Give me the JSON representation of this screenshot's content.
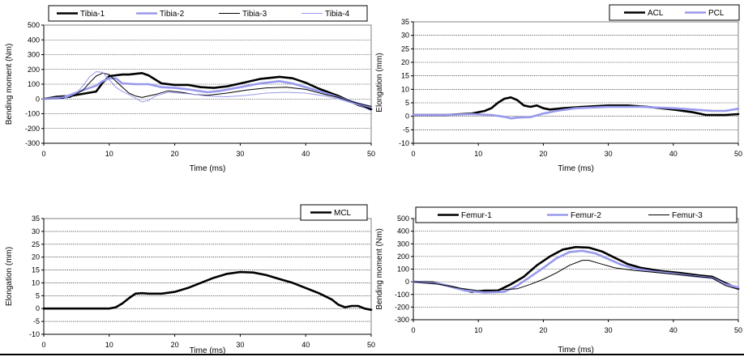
{
  "chart_data": [
    {
      "type": "line",
      "xlabel": "Time (ms)",
      "ylabel": "Bending moment (Nm)",
      "xlim": [
        0,
        50
      ],
      "ylim": [
        -300,
        500
      ],
      "xticks": [
        0,
        10,
        20,
        30,
        40,
        50
      ],
      "yticks": [
        -300,
        -200,
        -100,
        0,
        100,
        200,
        300,
        400,
        500
      ],
      "grid": "horizontal-dotted",
      "legend": "top",
      "series": [
        {
          "name": "Tibia-1",
          "color": "#000000",
          "width": 2.6,
          "points": [
            [
              0,
              0
            ],
            [
              2,
              15
            ],
            [
              4,
              20
            ],
            [
              6,
              35
            ],
            [
              8,
              50
            ],
            [
              9,
              110
            ],
            [
              10,
              155
            ],
            [
              12,
              165
            ],
            [
              13,
              165
            ],
            [
              15,
              175
            ],
            [
              16,
              160
            ],
            [
              18,
              105
            ],
            [
              20,
              95
            ],
            [
              22,
              95
            ],
            [
              24,
              80
            ],
            [
              26,
              75
            ],
            [
              28,
              85
            ],
            [
              30,
              105
            ],
            [
              33,
              135
            ],
            [
              36,
              150
            ],
            [
              38,
              140
            ],
            [
              40,
              110
            ],
            [
              42,
              70
            ],
            [
              45,
              20
            ],
            [
              48,
              -40
            ],
            [
              50,
              -70
            ]
          ]
        },
        {
          "name": "Tibia-2",
          "color": "#9999ee",
          "width": 2.6,
          "points": [
            [
              0,
              0
            ],
            [
              3,
              10
            ],
            [
              6,
              60
            ],
            [
              8,
              90
            ],
            [
              9,
              120
            ],
            [
              10,
              140
            ],
            [
              11,
              140
            ],
            [
              12,
              105
            ],
            [
              14,
              100
            ],
            [
              16,
              100
            ],
            [
              18,
              80
            ],
            [
              20,
              75
            ],
            [
              22,
              65
            ],
            [
              25,
              45
            ],
            [
              27,
              55
            ],
            [
              30,
              80
            ],
            [
              33,
              105
            ],
            [
              36,
              120
            ],
            [
              38,
              105
            ],
            [
              40,
              80
            ],
            [
              43,
              40
            ],
            [
              45,
              10
            ],
            [
              48,
              -30
            ],
            [
              50,
              -55
            ]
          ]
        },
        {
          "name": "Tibia-3",
          "color": "#000000",
          "width": 1.0,
          "points": [
            [
              0,
              0
            ],
            [
              2,
              0
            ],
            [
              4,
              10
            ],
            [
              6,
              60
            ],
            [
              7,
              110
            ],
            [
              8,
              155
            ],
            [
              9,
              175
            ],
            [
              10,
              165
            ],
            [
              11,
              120
            ],
            [
              12,
              80
            ],
            [
              13,
              40
            ],
            [
              14,
              20
            ],
            [
              15,
              10
            ],
            [
              17,
              30
            ],
            [
              19,
              55
            ],
            [
              21,
              45
            ],
            [
              23,
              30
            ],
            [
              25,
              25
            ],
            [
              28,
              40
            ],
            [
              31,
              60
            ],
            [
              34,
              75
            ],
            [
              37,
              80
            ],
            [
              40,
              65
            ],
            [
              43,
              30
            ],
            [
              45,
              10
            ],
            [
              48,
              -30
            ],
            [
              50,
              -50
            ]
          ]
        },
        {
          "name": "Tibia-4",
          "color": "#9999ee",
          "width": 1.0,
          "points": [
            [
              0,
              0
            ],
            [
              3,
              0
            ],
            [
              5,
              40
            ],
            [
              6,
              90
            ],
            [
              7,
              150
            ],
            [
              8,
              185
            ],
            [
              9,
              180
            ],
            [
              10,
              130
            ],
            [
              11,
              80
            ],
            [
              12,
              50
            ],
            [
              13,
              30
            ],
            [
              14,
              5
            ],
            [
              15,
              -20
            ],
            [
              16,
              -10
            ],
            [
              17,
              20
            ],
            [
              19,
              45
            ],
            [
              22,
              35
            ],
            [
              25,
              20
            ],
            [
              28,
              15
            ],
            [
              31,
              25
            ],
            [
              34,
              40
            ],
            [
              37,
              45
            ],
            [
              40,
              40
            ],
            [
              43,
              20
            ],
            [
              45,
              0
            ],
            [
              48,
              -40
            ],
            [
              50,
              -80
            ]
          ]
        }
      ]
    },
    {
      "type": "line",
      "xlabel": "Time (ms)",
      "ylabel": "Elongation (mm)",
      "xlim": [
        0,
        50
      ],
      "ylim": [
        -10,
        35
      ],
      "xticks": [
        0,
        10,
        20,
        30,
        40,
        50
      ],
      "yticks": [
        -10,
        -5,
        0,
        5,
        10,
        15,
        20,
        25,
        30,
        35
      ],
      "grid": "horizontal-dotted",
      "legend": "top-right",
      "series": [
        {
          "name": "ACL",
          "color": "#000000",
          "width": 2.6,
          "points": [
            [
              0,
              0.5
            ],
            [
              5,
              0.5
            ],
            [
              9,
              1
            ],
            [
              11,
              2
            ],
            [
              12,
              3
            ],
            [
              13,
              5
            ],
            [
              14,
              6.5
            ],
            [
              15,
              7
            ],
            [
              16,
              6
            ],
            [
              17,
              4
            ],
            [
              18,
              3.5
            ],
            [
              19,
              4
            ],
            [
              20,
              3
            ],
            [
              21,
              2.5
            ],
            [
              23,
              3
            ],
            [
              26,
              3.5
            ],
            [
              30,
              4
            ],
            [
              33,
              4
            ],
            [
              36,
              3.5
            ],
            [
              40,
              2.5
            ],
            [
              43,
              1.5
            ],
            [
              45,
              0.5
            ],
            [
              48,
              0.5
            ],
            [
              50,
              0.8
            ]
          ]
        },
        {
          "name": "PCL",
          "color": "#9999ee",
          "width": 2.6,
          "points": [
            [
              0,
              0.5
            ],
            [
              5,
              0.5
            ],
            [
              9,
              0.8
            ],
            [
              12,
              0.5
            ],
            [
              14,
              -0.2
            ],
            [
              15,
              -0.8
            ],
            [
              16,
              -0.5
            ],
            [
              18,
              -0.3
            ],
            [
              20,
              1
            ],
            [
              22,
              2
            ],
            [
              25,
              3
            ],
            [
              30,
              3.5
            ],
            [
              35,
              3.5
            ],
            [
              40,
              3
            ],
            [
              43,
              2.5
            ],
            [
              46,
              2
            ],
            [
              48,
              2
            ],
            [
              50,
              2.8
            ]
          ]
        }
      ]
    },
    {
      "type": "line",
      "xlabel": "Time (ms)",
      "ylabel": "Elongation (mm)",
      "xlim": [
        0,
        50
      ],
      "ylim": [
        -10,
        35
      ],
      "xticks": [
        0,
        10,
        20,
        30,
        40,
        50
      ],
      "yticks": [
        -10,
        -5,
        0,
        5,
        10,
        15,
        20,
        25,
        30,
        35
      ],
      "grid": "horizontal-dotted",
      "legend": "top-right",
      "series": [
        {
          "name": "MCL",
          "color": "#000000",
          "width": 2.6,
          "points": [
            [
              0,
              0
            ],
            [
              10,
              0
            ],
            [
              11,
              0.5
            ],
            [
              12,
              2
            ],
            [
              13,
              4
            ],
            [
              14,
              5.8
            ],
            [
              15,
              6
            ],
            [
              16,
              5.8
            ],
            [
              18,
              5.8
            ],
            [
              20,
              6.5
            ],
            [
              22,
              8
            ],
            [
              24,
              10
            ],
            [
              26,
              12
            ],
            [
              28,
              13.5
            ],
            [
              30,
              14.2
            ],
            [
              32,
              14
            ],
            [
              34,
              13
            ],
            [
              36,
              11.5
            ],
            [
              38,
              10
            ],
            [
              40,
              8
            ],
            [
              42,
              6
            ],
            [
              44,
              3.5
            ],
            [
              45,
              1.5
            ],
            [
              46,
              0.5
            ],
            [
              47,
              1
            ],
            [
              48,
              1
            ],
            [
              49,
              0
            ],
            [
              50,
              -0.5
            ]
          ]
        }
      ]
    },
    {
      "type": "line",
      "xlabel": "Time (ms)",
      "ylabel": "Bending moment (Nm)",
      "xlim": [
        0,
        50
      ],
      "ylim": [
        -300,
        500
      ],
      "xticks": [
        0,
        10,
        20,
        30,
        40,
        50
      ],
      "yticks": [
        -300,
        -200,
        -100,
        0,
        100,
        200,
        300,
        400,
        500
      ],
      "grid": "horizontal-dotted",
      "legend": "top",
      "series": [
        {
          "name": "Femur-1",
          "color": "#000000",
          "width": 2.6,
          "points": [
            [
              0,
              0
            ],
            [
              3,
              -5
            ],
            [
              6,
              -40
            ],
            [
              9,
              -80
            ],
            [
              11,
              -70
            ],
            [
              13,
              -70
            ],
            [
              15,
              -20
            ],
            [
              17,
              40
            ],
            [
              19,
              130
            ],
            [
              21,
              200
            ],
            [
              23,
              255
            ],
            [
              25,
              275
            ],
            [
              27,
              270
            ],
            [
              29,
              240
            ],
            [
              31,
              190
            ],
            [
              33,
              140
            ],
            [
              35,
              110
            ],
            [
              38,
              85
            ],
            [
              41,
              70
            ],
            [
              44,
              50
            ],
            [
              46,
              40
            ],
            [
              48,
              -10
            ],
            [
              50,
              -55
            ]
          ]
        },
        {
          "name": "Femur-2",
          "color": "#9999ee",
          "width": 2.6,
          "points": [
            [
              0,
              0
            ],
            [
              4,
              -15
            ],
            [
              8,
              -70
            ],
            [
              11,
              -85
            ],
            [
              14,
              -80
            ],
            [
              16,
              -30
            ],
            [
              18,
              40
            ],
            [
              20,
              110
            ],
            [
              22,
              185
            ],
            [
              24,
              235
            ],
            [
              26,
              245
            ],
            [
              28,
              225
            ],
            [
              30,
              180
            ],
            [
              32,
              135
            ],
            [
              34,
              105
            ],
            [
              37,
              80
            ],
            [
              40,
              65
            ],
            [
              43,
              45
            ],
            [
              46,
              30
            ],
            [
              48,
              -20
            ],
            [
              50,
              -45
            ]
          ]
        },
        {
          "name": "Femur-3",
          "color": "#000000",
          "width": 1.0,
          "points": [
            [
              0,
              0
            ],
            [
              4,
              -20
            ],
            [
              7,
              -50
            ],
            [
              10,
              -70
            ],
            [
              13,
              -65
            ],
            [
              16,
              -55
            ],
            [
              18,
              -20
            ],
            [
              20,
              20
            ],
            [
              22,
              70
            ],
            [
              24,
              130
            ],
            [
              26,
              170
            ],
            [
              27,
              170
            ],
            [
              29,
              140
            ],
            [
              31,
              110
            ],
            [
              34,
              90
            ],
            [
              37,
              75
            ],
            [
              40,
              60
            ],
            [
              43,
              45
            ],
            [
              46,
              30
            ],
            [
              48,
              -30
            ],
            [
              50,
              -60
            ]
          ]
        }
      ]
    }
  ]
}
